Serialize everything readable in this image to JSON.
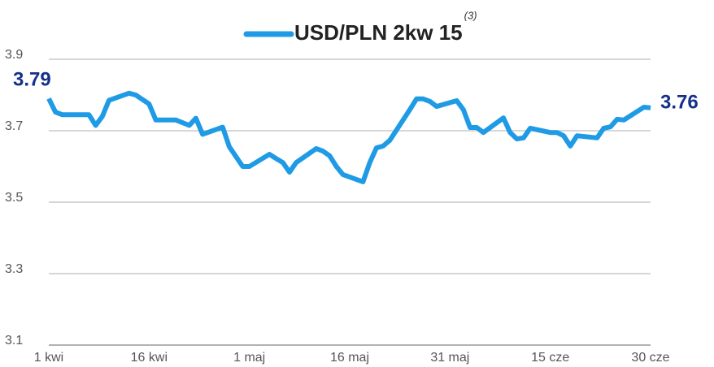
{
  "chart_data": {
    "type": "line",
    "note": "(3)",
    "x": [
      0,
      1,
      2,
      6,
      7,
      8,
      9,
      12,
      13,
      15,
      16,
      19,
      21,
      22,
      23,
      26,
      27,
      29,
      30,
      33,
      34,
      35,
      36,
      37,
      40,
      41,
      42,
      43,
      44,
      47,
      48,
      49,
      50,
      51,
      54,
      55,
      56,
      57,
      58,
      61,
      62,
      63,
      64,
      65,
      68,
      69,
      70,
      71,
      72,
      75,
      76,
      77,
      78,
      79,
      82,
      83,
      84,
      85,
      86,
      89,
      90
    ],
    "series": [
      {
        "name": "USD/PLN 2kw 15",
        "color": "#1f9be6",
        "values": [
          3.79,
          3.752,
          3.745,
          3.745,
          3.715,
          3.74,
          3.785,
          3.805,
          3.8,
          3.775,
          3.73,
          3.73,
          3.715,
          3.735,
          3.69,
          3.71,
          3.655,
          3.6,
          3.6,
          3.634,
          3.622,
          3.611,
          3.584,
          3.611,
          3.65,
          3.643,
          3.63,
          3.6,
          3.577,
          3.557,
          3.611,
          3.652,
          3.657,
          3.673,
          3.759,
          3.789,
          3.789,
          3.782,
          3.768,
          3.784,
          3.759,
          3.709,
          3.709,
          3.695,
          3.736,
          3.695,
          3.677,
          3.68,
          3.707,
          3.695,
          3.695,
          3.686,
          3.657,
          3.686,
          3.68,
          3.707,
          3.711,
          3.732,
          3.73,
          3.766,
          3.764
        ]
      }
    ],
    "annotations": [
      "3.79",
      "3.76"
    ],
    "xlim": [
      0,
      90
    ],
    "xticks": [
      {
        "value": 0,
        "label": "1 kwi"
      },
      {
        "value": 15,
        "label": "16 kwi"
      },
      {
        "value": 30,
        "label": "1 maj"
      },
      {
        "value": 45,
        "label": "16 maj"
      },
      {
        "value": 60,
        "label": "31 maj"
      },
      {
        "value": 75,
        "label": "15 cze"
      },
      {
        "value": 90,
        "label": "30 cze"
      }
    ],
    "ylim": [
      3.1,
      3.9
    ],
    "yticks": [
      3.1,
      3.3,
      3.5,
      3.7,
      3.9
    ],
    "grid": true,
    "label_color": "#15308a"
  }
}
